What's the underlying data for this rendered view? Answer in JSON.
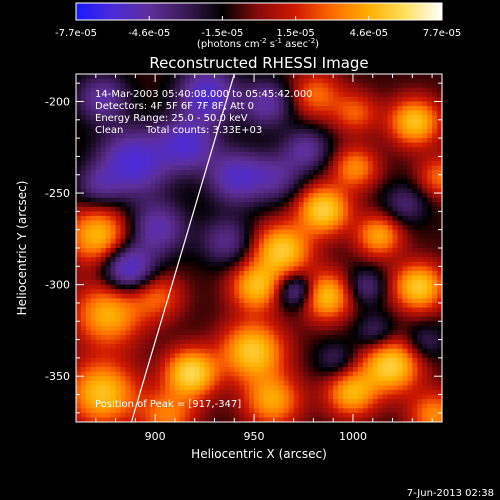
{
  "colors": {
    "background": "#000000",
    "text": "#ffffff",
    "limb": "#ffffff",
    "colormap": [
      "#1a1aff",
      "#4b2bd9",
      "#5e2f9a",
      "#3a1a55",
      "#000000",
      "#8a0a0a",
      "#d01a00",
      "#ff6a00",
      "#ffb000",
      "#ffe060",
      "#ffffff"
    ]
  },
  "colorbar": {
    "tick_labels": [
      "-7.7e-05",
      "-4.6e-05",
      "-1.5e-05",
      "1.5e-05",
      "4.6e-05",
      "7.7e-05"
    ],
    "units_main": "(photons cm",
    "units_exp1": "-2",
    "units_mid": " s",
    "units_exp2": "-1",
    "units_end": " asec",
    "units_exp3": "-2",
    "units_close": ")"
  },
  "chart_data": {
    "type": "heatmap",
    "title": "Reconstructed RHESSI Image",
    "xlabel": "Heliocentric X (arcsec)",
    "ylabel": "Heliocentric Y (arcsec)",
    "xlim": [
      860,
      1045
    ],
    "ylim": [
      -375,
      -185
    ],
    "x_ticks": [
      900,
      950,
      1000
    ],
    "y_ticks": [
      -200,
      -250,
      -300,
      -350
    ],
    "color_range": [
      -7.7e-05,
      7.7e-05
    ],
    "annotations": {
      "time_range": "14-Mar-2003 05:40:08.000 to 05:45:42.000",
      "detectors": "Detectors: 4F 5F 6F 7F 8F, Att 0",
      "energy_range": "Energy Range: 25.0 - 50.0 keV",
      "method": "Clean",
      "total_counts": "Total counts: 3.33E+03",
      "peak": "Position of Peak = [917,-347]"
    },
    "peak": [
      917,
      -347
    ],
    "blobs": [
      {
        "x": 917,
        "y": -347,
        "v": 1.0,
        "s": 9
      },
      {
        "x": 872,
        "y": -358,
        "v": 0.85,
        "s": 12
      },
      {
        "x": 948,
        "y": -335,
        "v": 0.9,
        "s": 11
      },
      {
        "x": 1018,
        "y": -343,
        "v": 0.95,
        "s": 10
      },
      {
        "x": 998,
        "y": -358,
        "v": 0.75,
        "s": 9
      },
      {
        "x": 958,
        "y": -362,
        "v": 0.7,
        "s": 10
      },
      {
        "x": 875,
        "y": -315,
        "v": 0.75,
        "s": 12
      },
      {
        "x": 870,
        "y": -272,
        "v": 0.8,
        "s": 11
      },
      {
        "x": 900,
        "y": -305,
        "v": 0.45,
        "s": 9
      },
      {
        "x": 963,
        "y": -280,
        "v": 0.9,
        "s": 10
      },
      {
        "x": 984,
        "y": -258,
        "v": 0.95,
        "s": 9
      },
      {
        "x": 1000,
        "y": -235,
        "v": 0.6,
        "s": 8
      },
      {
        "x": 1012,
        "y": -272,
        "v": 0.7,
        "s": 8
      },
      {
        "x": 1030,
        "y": -210,
        "v": 0.85,
        "s": 9
      },
      {
        "x": 1032,
        "y": -300,
        "v": 0.9,
        "s": 9
      },
      {
        "x": 985,
        "y": -305,
        "v": 0.85,
        "s": 9
      },
      {
        "x": 950,
        "y": -300,
        "v": 0.8,
        "s": 9
      },
      {
        "x": 905,
        "y": -370,
        "v": 0.55,
        "s": 10
      },
      {
        "x": 1040,
        "y": -370,
        "v": 0.6,
        "s": 9
      },
      {
        "x": 1043,
        "y": -240,
        "v": 0.5,
        "s": 8
      },
      {
        "x": 980,
        "y": -195,
        "v": 0.5,
        "s": 9
      },
      {
        "x": 1000,
        "y": -205,
        "v": 0.45,
        "s": 8
      },
      {
        "x": 888,
        "y": -232,
        "v": -0.85,
        "s": 12
      },
      {
        "x": 915,
        "y": -222,
        "v": -0.75,
        "s": 10
      },
      {
        "x": 940,
        "y": -240,
        "v": -0.7,
        "s": 10
      },
      {
        "x": 925,
        "y": -195,
        "v": -0.8,
        "s": 10
      },
      {
        "x": 955,
        "y": -200,
        "v": -0.55,
        "s": 9
      },
      {
        "x": 872,
        "y": -197,
        "v": -0.55,
        "s": 9
      },
      {
        "x": 900,
        "y": -268,
        "v": -0.6,
        "s": 10
      },
      {
        "x": 885,
        "y": -290,
        "v": -0.85,
        "s": 9
      },
      {
        "x": 870,
        "y": -245,
        "v": -0.4,
        "s": 8
      },
      {
        "x": 935,
        "y": -275,
        "v": -0.45,
        "s": 9
      },
      {
        "x": 960,
        "y": -240,
        "v": -0.45,
        "s": 9
      },
      {
        "x": 975,
        "y": -225,
        "v": -0.5,
        "s": 8
      },
      {
        "x": 970,
        "y": -302,
        "v": -0.65,
        "s": 7
      },
      {
        "x": 1005,
        "y": -300,
        "v": -0.4,
        "s": 7
      },
      {
        "x": 1025,
        "y": -255,
        "v": -0.35,
        "s": 8
      },
      {
        "x": 1010,
        "y": -325,
        "v": -0.35,
        "s": 7
      },
      {
        "x": 990,
        "y": -340,
        "v": -0.3,
        "s": 7
      },
      {
        "x": 1035,
        "y": -330,
        "v": -0.3,
        "s": 7
      }
    ],
    "limb_line": [
      [
        888,
        -375
      ],
      [
        940,
        -185
      ]
    ]
  },
  "footer": {
    "date": "7-Jun-2013 02:38"
  }
}
